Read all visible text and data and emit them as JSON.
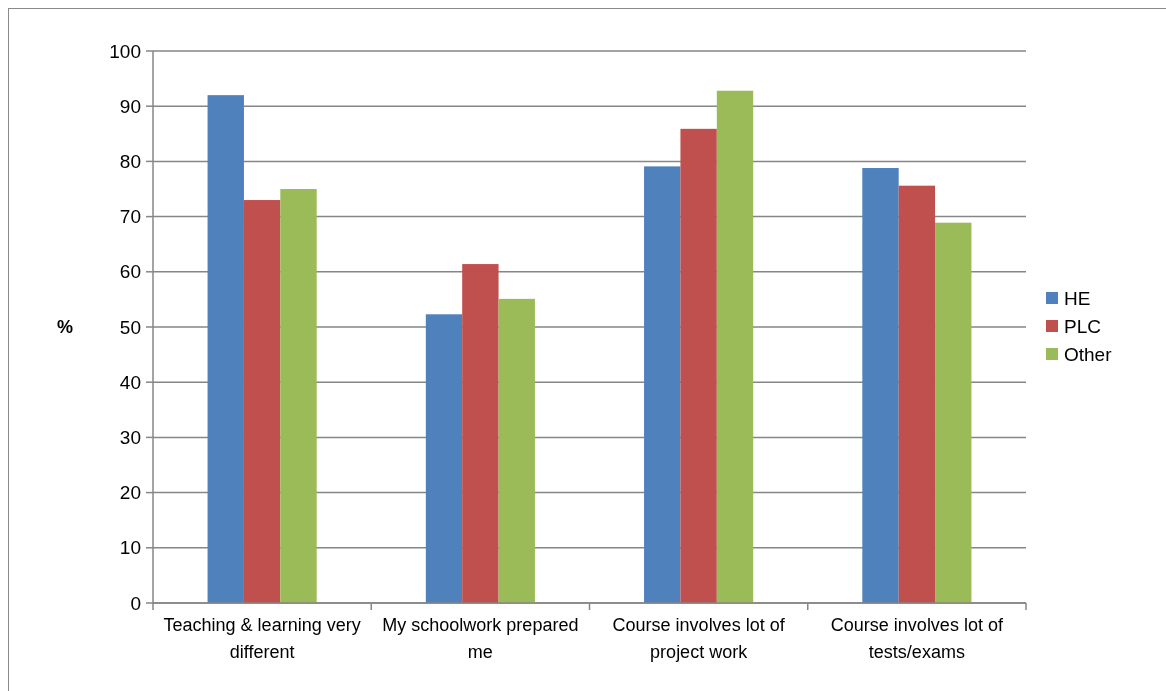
{
  "chart_data": {
    "type": "bar",
    "ylabel": "%",
    "categories": [
      "Teaching & learning very different",
      "My schoolwork prepared me",
      "Course involves lot of project work",
      "Course involves lot of tests/exams"
    ],
    "series": [
      {
        "name": "HE",
        "color": "#4f81bd",
        "values": [
          92.0,
          52.3,
          79.1,
          78.8
        ]
      },
      {
        "name": "PLC",
        "color": "#c0504d",
        "values": [
          73.0,
          61.4,
          85.9,
          75.6
        ]
      },
      {
        "name": "Other",
        "color": "#9bbb59",
        "values": [
          75.0,
          55.1,
          92.8,
          68.9
        ]
      }
    ],
    "ylim": [
      0,
      100
    ],
    "yticks": [
      0,
      10,
      20,
      30,
      40,
      50,
      60,
      70,
      80,
      90,
      100
    ],
    "grid": "y",
    "legend": "right"
  }
}
